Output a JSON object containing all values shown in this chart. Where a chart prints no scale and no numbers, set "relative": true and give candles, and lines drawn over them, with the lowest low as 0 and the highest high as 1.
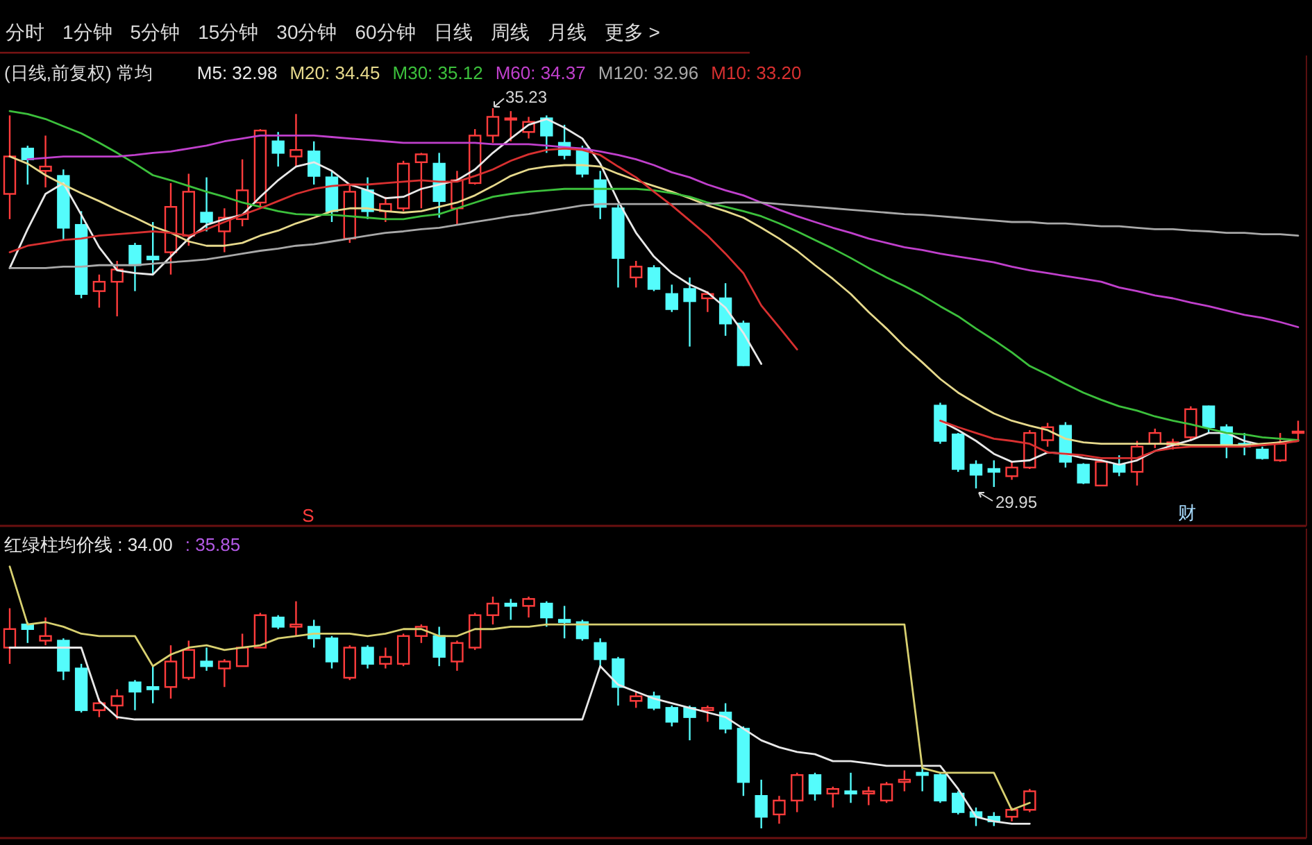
{
  "chart_data": [
    {
      "type": "other",
      "annotations": [
        "分时",
        "1分钟",
        "5分钟",
        "15分钟",
        "30分钟",
        "60分钟",
        "日线",
        "周线",
        "月线",
        "更多 >"
      ]
    },
    {
      "type": "candlestick",
      "title": "(日线,前复权) 常均",
      "categories": [
        null,
        null,
        null,
        null,
        null,
        null,
        null,
        null,
        null,
        null,
        null,
        null,
        null,
        null,
        null,
        null,
        null,
        null,
        null,
        null,
        null,
        null,
        null,
        null,
        null,
        null,
        null,
        null,
        null,
        null,
        null,
        null,
        null,
        null,
        null,
        null,
        null,
        null,
        null,
        null,
        null,
        null,
        null,
        null,
        null,
        null,
        null,
        null,
        null,
        null,
        null,
        null,
        null,
        null,
        null,
        null,
        null,
        null,
        null,
        null,
        null,
        null,
        null,
        null,
        null,
        null,
        null,
        null,
        null,
        null,
        null,
        null,
        null
      ],
      "ohlc": [
        [
          34.04,
          35.13,
          33.69,
          34.56
        ],
        [
          34.67,
          34.71,
          34.17,
          34.52
        ],
        [
          34.36,
          34.85,
          34.13,
          34.42
        ],
        [
          34.29,
          34.38,
          33.4,
          33.57
        ],
        [
          33.61,
          33.8,
          32.59,
          32.65
        ],
        [
          32.69,
          32.92,
          32.46,
          32.82
        ],
        [
          32.82,
          33.11,
          32.34,
          32.99
        ],
        [
          33.32,
          33.36,
          32.69,
          33.05
        ],
        [
          33.17,
          33.65,
          32.92,
          33.13
        ],
        [
          33.23,
          34.19,
          32.92,
          33.86
        ],
        [
          33.46,
          34.32,
          33.32,
          34.07
        ],
        [
          33.78,
          34.27,
          33.52,
          33.65
        ],
        [
          33.52,
          33.84,
          33.23,
          33.71
        ],
        [
          33.69,
          34.52,
          33.59,
          34.09
        ],
        [
          33.92,
          34.94,
          33.84,
          34.92
        ],
        [
          34.77,
          34.9,
          34.42,
          34.61
        ],
        [
          34.56,
          35.15,
          34.42,
          34.65
        ],
        [
          34.63,
          34.77,
          34.17,
          34.29
        ],
        [
          34.27,
          34.36,
          33.65,
          33.8
        ],
        [
          33.42,
          34.17,
          33.36,
          34.07
        ],
        [
          34.09,
          34.27,
          33.69,
          33.8
        ],
        [
          33.8,
          34.0,
          33.65,
          33.9
        ],
        [
          33.84,
          34.5,
          33.8,
          34.46
        ],
        [
          34.48,
          34.61,
          33.84,
          34.59
        ],
        [
          34.46,
          34.61,
          33.71,
          33.94
        ],
        [
          33.84,
          34.36,
          33.61,
          34.23
        ],
        [
          34.19,
          34.94,
          34.17,
          34.85
        ],
        [
          34.85,
          35.23,
          34.75,
          35.11
        ],
        [
          35.08,
          35.19,
          34.77,
          35.09
        ],
        [
          34.9,
          35.11,
          34.81,
          35.04
        ],
        [
          35.09,
          35.13,
          34.61,
          34.85
        ],
        [
          34.75,
          35.0,
          34.52,
          34.58
        ],
        [
          34.67,
          34.71,
          34.27,
          34.32
        ],
        [
          34.23,
          34.36,
          33.69,
          33.86
        ],
        [
          33.84,
          33.9,
          32.74,
          33.15
        ],
        [
          32.88,
          33.11,
          32.74,
          33.03
        ],
        [
          33.01,
          33.05,
          32.69,
          32.72
        ],
        [
          32.65,
          32.78,
          32.4,
          32.44
        ],
        [
          32.72,
          32.88,
          31.92,
          32.55
        ],
        [
          32.59,
          32.69,
          32.4,
          32.65
        ],
        [
          32.59,
          32.8,
          32.07,
          32.24
        ],
        [
          32.24,
          32.28,
          31.65,
          31.66
        ],
        null,
        null,
        null,
        null,
        null,
        null,
        null,
        null,
        null,
        null,
        [
          31.1,
          31.14,
          30.57,
          30.61
        ],
        [
          30.7,
          30.72,
          30.18,
          30.22
        ],
        [
          30.28,
          30.34,
          29.95,
          30.14
        ],
        [
          30.22,
          30.34,
          29.97,
          30.18
        ],
        [
          30.12,
          30.32,
          30.07,
          30.24
        ],
        [
          30.24,
          30.76,
          30.22,
          30.72
        ],
        [
          30.62,
          30.86,
          30.53,
          30.8
        ],
        [
          30.82,
          30.87,
          30.24,
          30.32
        ],
        [
          30.28,
          30.3,
          30.01,
          30.03
        ],
        [
          29.99,
          30.35,
          29.99,
          30.32
        ],
        [
          30.28,
          30.41,
          30.12,
          30.18
        ],
        [
          30.18,
          30.61,
          29.99,
          30.53
        ],
        [
          30.57,
          30.78,
          30.51,
          30.72
        ],
        [
          30.55,
          30.64,
          30.49,
          30.59
        ],
        [
          30.66,
          31.09,
          30.61,
          31.05
        ],
        [
          31.09,
          31.1,
          30.72,
          30.8
        ],
        [
          30.8,
          30.84,
          30.37,
          30.53
        ],
        [
          30.57,
          30.72,
          30.41,
          30.53
        ],
        [
          30.49,
          30.53,
          30.35,
          30.37
        ],
        [
          30.34,
          30.72,
          30.32,
          30.57
        ],
        [
          30.72,
          30.89,
          30.62,
          30.74
        ]
      ],
      "series": [
        {
          "name": "M5: 32.98",
          "type": "line",
          "color": "#e8e8e8",
          "values": [
            33.01,
            33.55,
            34.04,
            34.19,
            33.75,
            33.3,
            32.98,
            32.94,
            32.92,
            33.17,
            33.42,
            33.61,
            33.69,
            33.75,
            34.0,
            34.23,
            34.42,
            34.48,
            34.36,
            34.17,
            34.09,
            33.98,
            34.0,
            34.11,
            34.17,
            34.23,
            34.38,
            34.61,
            34.81,
            35.0,
            35.08,
            34.96,
            34.81,
            34.46,
            33.94,
            33.5,
            33.17,
            32.94,
            32.78,
            32.67,
            32.46,
            32.11,
            31.68,
            null,
            null,
            null,
            null,
            null,
            null,
            null,
            null,
            null,
            30.89,
            30.76,
            30.61,
            30.43,
            30.32,
            30.34,
            30.45,
            30.43,
            30.37,
            30.34,
            30.28,
            30.34,
            30.47,
            30.55,
            30.62,
            30.72,
            30.72,
            30.61,
            30.55,
            30.59,
            30.62
          ]
        },
        {
          "name": "M20: 34.45",
          "type": "line",
          "color": "#e6d98c",
          "values": [
            34.56,
            34.46,
            34.3,
            34.17,
            34.05,
            33.94,
            33.82,
            33.71,
            33.59,
            33.5,
            33.38,
            33.32,
            33.32,
            33.36,
            33.46,
            33.53,
            33.63,
            33.71,
            33.8,
            33.84,
            33.84,
            33.8,
            33.78,
            33.8,
            33.86,
            33.92,
            34.02,
            34.15,
            34.29,
            34.38,
            34.42,
            34.44,
            34.44,
            34.42,
            34.32,
            34.23,
            34.15,
            34.07,
            33.98,
            33.88,
            33.8,
            33.71,
            33.57,
            33.42,
            33.25,
            33.05,
            32.86,
            32.65,
            32.4,
            32.17,
            31.92,
            31.7,
            31.47,
            31.28,
            31.13,
            30.99,
            30.89,
            30.82,
            30.76,
            30.64,
            30.59,
            30.57,
            30.57,
            30.57,
            30.57,
            30.57,
            30.55,
            30.55,
            30.55,
            30.55,
            30.57,
            30.59,
            30.61
          ]
        },
        {
          "name": "M30: 35.12",
          "type": "line",
          "color": "#3cc03c",
          "values": [
            35.19,
            35.15,
            35.08,
            34.98,
            34.88,
            34.75,
            34.61,
            34.46,
            34.3,
            34.23,
            34.15,
            34.07,
            34.0,
            33.92,
            33.86,
            33.8,
            33.76,
            33.75,
            33.75,
            33.73,
            33.71,
            33.69,
            33.69,
            33.73,
            33.76,
            33.84,
            33.92,
            34.0,
            34.04,
            34.07,
            34.09,
            34.11,
            34.11,
            34.11,
            34.11,
            34.11,
            34.09,
            34.05,
            34.0,
            33.92,
            33.86,
            33.8,
            33.73,
            33.63,
            33.52,
            33.4,
            33.28,
            33.15,
            33.01,
            32.88,
            32.76,
            32.63,
            32.48,
            32.34,
            32.17,
            32.01,
            31.84,
            31.65,
            31.53,
            31.4,
            31.28,
            31.18,
            31.09,
            31.03,
            30.95,
            30.89,
            30.84,
            30.78,
            30.72,
            30.7,
            30.66,
            30.64,
            30.62
          ]
        },
        {
          "name": "M60: 34.37",
          "type": "line",
          "color": "#c040cc",
          "values": [
            null,
            34.52,
            34.54,
            34.56,
            34.56,
            34.56,
            34.56,
            34.58,
            34.61,
            34.63,
            34.67,
            34.71,
            34.77,
            34.81,
            34.85,
            34.85,
            34.85,
            34.85,
            34.83,
            34.81,
            34.79,
            34.77,
            34.75,
            34.75,
            34.75,
            34.75,
            34.75,
            34.73,
            34.73,
            34.73,
            34.71,
            34.69,
            34.67,
            34.63,
            34.58,
            34.52,
            34.44,
            34.34,
            34.27,
            34.17,
            34.09,
            34.02,
            33.92,
            33.82,
            33.73,
            33.65,
            33.57,
            33.5,
            33.42,
            33.36,
            33.3,
            33.26,
            33.21,
            33.17,
            33.13,
            33.09,
            33.03,
            32.98,
            32.94,
            32.9,
            32.86,
            32.82,
            32.74,
            32.69,
            32.63,
            32.59,
            32.53,
            32.48,
            32.42,
            32.36,
            32.32,
            32.26,
            32.19
          ]
        },
        {
          "name": "M120: 32.96",
          "type": "line",
          "color": "#a8a8a8",
          "values": [
            33.01,
            33.01,
            33.01,
            33.03,
            33.03,
            33.05,
            33.05,
            33.05,
            33.07,
            33.09,
            33.11,
            33.13,
            33.17,
            33.21,
            33.25,
            33.28,
            33.32,
            33.34,
            33.38,
            33.42,
            33.46,
            33.5,
            33.52,
            33.55,
            33.57,
            33.61,
            33.65,
            33.69,
            33.73,
            33.76,
            33.8,
            33.84,
            33.88,
            33.9,
            33.9,
            33.9,
            33.9,
            33.9,
            33.9,
            33.9,
            33.92,
            33.92,
            33.92,
            33.9,
            33.88,
            33.86,
            33.84,
            33.82,
            33.8,
            33.78,
            33.76,
            33.75,
            33.73,
            33.71,
            33.69,
            33.67,
            33.65,
            33.65,
            33.63,
            33.63,
            33.61,
            33.59,
            33.59,
            33.57,
            33.55,
            33.55,
            33.53,
            33.52,
            33.5,
            33.5,
            33.48,
            33.48,
            33.46
          ]
        },
        {
          "name": "M10: 33.20",
          "type": "line",
          "color": "#d83030",
          "values": [
            33.23,
            33.32,
            33.36,
            33.4,
            33.42,
            33.46,
            33.48,
            33.5,
            33.52,
            33.5,
            33.46,
            33.55,
            33.65,
            33.75,
            33.84,
            33.94,
            34.04,
            34.11,
            34.15,
            34.17,
            34.17,
            34.19,
            34.21,
            34.23,
            34.21,
            34.21,
            34.29,
            34.38,
            34.5,
            34.59,
            34.65,
            34.67,
            34.65,
            34.58,
            34.42,
            34.27,
            34.07,
            33.88,
            33.67,
            33.46,
            33.21,
            32.94,
            32.49,
            32.19,
            31.88,
            null,
            null,
            null,
            null,
            null,
            null,
            null,
            30.89,
            30.8,
            30.72,
            30.64,
            30.61,
            30.57,
            30.45,
            30.43,
            30.41,
            30.37,
            30.37,
            30.37,
            30.47,
            30.51,
            30.53,
            30.53,
            30.53,
            30.53,
            30.55,
            30.57,
            30.61
          ]
        }
      ],
      "annotations": [
        "35.23",
        "29.95",
        "S",
        "财"
      ]
    },
    {
      "type": "candlestick",
      "relative": true,
      "categories": [
        null,
        null,
        null,
        null,
        null,
        null,
        null,
        null,
        null,
        null,
        null,
        null,
        null,
        null,
        null,
        null,
        null,
        null,
        null,
        null,
        null,
        null,
        null,
        null,
        null,
        null,
        null,
        null,
        null,
        null,
        null,
        null,
        null,
        null,
        null,
        null,
        null,
        null,
        null,
        null,
        null,
        null,
        null,
        null,
        null,
        null,
        null,
        null,
        null,
        null,
        null,
        null,
        null,
        null,
        null,
        null,
        null,
        null,
        null,
        null,
        null,
        null,
        null,
        null,
        null,
        null,
        null,
        null,
        null,
        null,
        null,
        null,
        null
      ],
      "ohlc": [
        [
          0.78,
          0.95,
          0.71,
          0.86
        ],
        [
          0.88,
          0.89,
          0.8,
          0.86
        ],
        [
          0.81,
          0.91,
          0.79,
          0.83
        ],
        [
          0.81,
          0.82,
          0.64,
          0.68
        ],
        [
          0.69,
          0.71,
          0.5,
          0.51
        ],
        [
          0.51,
          0.56,
          0.48,
          0.54
        ],
        [
          0.53,
          0.6,
          0.47,
          0.57
        ],
        [
          0.63,
          0.64,
          0.51,
          0.59
        ],
        [
          0.61,
          0.7,
          0.54,
          0.6
        ],
        [
          0.61,
          0.79,
          0.56,
          0.72
        ],
        [
          0.65,
          0.81,
          0.64,
          0.77
        ],
        [
          0.72,
          0.78,
          0.68,
          0.7
        ],
        [
          0.69,
          0.73,
          0.61,
          0.72
        ],
        [
          0.7,
          0.84,
          0.7,
          0.78
        ],
        [
          0.78,
          0.93,
          0.78,
          0.92
        ],
        [
          0.91,
          0.92,
          0.86,
          0.87
        ],
        [
          0.87,
          0.98,
          0.83,
          0.88
        ],
        [
          0.87,
          0.9,
          0.78,
          0.82
        ],
        [
          0.82,
          0.83,
          0.69,
          0.72
        ],
        [
          0.65,
          0.79,
          0.64,
          0.78
        ],
        [
          0.78,
          0.79,
          0.69,
          0.71
        ],
        [
          0.71,
          0.78,
          0.69,
          0.74
        ],
        [
          0.71,
          0.84,
          0.7,
          0.83
        ],
        [
          0.83,
          0.88,
          0.8,
          0.87
        ],
        [
          0.83,
          0.87,
          0.7,
          0.74
        ],
        [
          0.72,
          0.81,
          0.68,
          0.8
        ],
        [
          0.78,
          0.93,
          0.77,
          0.92
        ],
        [
          0.92,
          1.0,
          0.88,
          0.97
        ],
        [
          0.97,
          0.99,
          0.9,
          0.96
        ],
        [
          0.96,
          1.0,
          0.91,
          0.99
        ],
        [
          0.97,
          0.98,
          0.87,
          0.91
        ],
        [
          0.9,
          0.96,
          0.82,
          0.89
        ],
        [
          0.89,
          0.9,
          0.81,
          0.82
        ],
        [
          0.8,
          0.82,
          0.7,
          0.73
        ],
        [
          0.73,
          0.74,
          0.53,
          0.61
        ],
        [
          0.55,
          0.59,
          0.52,
          0.57
        ],
        [
          0.57,
          0.59,
          0.51,
          0.52
        ],
        [
          0.52,
          0.53,
          0.44,
          0.46
        ],
        [
          0.52,
          0.53,
          0.38,
          0.48
        ],
        [
          0.51,
          0.53,
          0.46,
          0.52
        ],
        [
          0.5,
          0.54,
          0.41,
          0.43
        ],
        [
          0.43,
          0.44,
          0.14,
          0.2
        ],
        [
          0.14,
          0.21,
          0,
          0.05
        ],
        [
          0.06,
          0.14,
          0.02,
          0.12
        ],
        [
          0.12,
          0.24,
          0.07,
          0.23
        ],
        [
          0.23,
          0.24,
          0.12,
          0.15
        ],
        [
          0.15,
          0.18,
          0.09,
          0.17
        ],
        [
          0.16,
          0.24,
          0.11,
          0.15
        ],
        [
          0.15,
          0.18,
          0.1,
          0.16
        ],
        [
          0.12,
          0.2,
          0.11,
          0.19
        ],
        [
          0.2,
          0.25,
          0.16,
          0.21
        ],
        [
          0.24,
          0.27,
          0.16,
          0.23
        ],
        [
          0.23,
          0.24,
          0.11,
          0.12
        ],
        [
          0.15,
          0.16,
          0.06,
          0.07
        ],
        [
          0.07,
          0.09,
          0.01,
          0.05
        ],
        [
          0.05,
          0.07,
          0.01,
          0.03
        ],
        [
          0.05,
          0.09,
          0.03,
          0.08
        ],
        [
          0.08,
          0.17,
          0.07,
          0.16
        ],
        null,
        null,
        null,
        null,
        null,
        null,
        null,
        null,
        null,
        null,
        null,
        null,
        null,
        null,
        null
      ],
      "series": [
        {
          "name": "红绿柱均价线 : 34.00",
          "type": "line",
          "color": "#e8e8e8",
          "values": [
            0.78,
            0.78,
            0.78,
            0.78,
            0.78,
            0.55,
            0.48,
            0.47,
            0.47,
            0.47,
            0.47,
            0.47,
            0.47,
            0.47,
            0.47,
            0.47,
            0.47,
            0.47,
            0.47,
            0.47,
            0.47,
            0.47,
            0.47,
            0.47,
            0.47,
            0.47,
            0.47,
            0.47,
            0.47,
            0.47,
            0.47,
            0.47,
            0.47,
            0.7,
            0.62,
            0.59,
            0.56,
            0.54,
            0.52,
            0.5,
            0.48,
            0.43,
            0.38,
            0.35,
            0.33,
            0.32,
            0.29,
            0.29,
            0.28,
            0.27,
            0.27,
            0.27,
            0.27,
            0.17,
            0.05,
            0.03,
            0.02,
            0.02,
            null,
            null,
            null,
            null,
            null,
            null,
            null,
            null,
            null,
            null,
            null,
            null,
            null,
            null,
            null
          ]
        },
        {
          "type": "line",
          "color": "#d8d070",
          "values": [
            1.13,
            0.88,
            0.89,
            0.87,
            0.84,
            0.83,
            0.83,
            0.83,
            0.7,
            0.75,
            0.78,
            0.79,
            0.77,
            0.78,
            0.79,
            0.82,
            0.83,
            0.84,
            0.84,
            0.84,
            0.83,
            0.84,
            0.86,
            0.86,
            0.83,
            0.83,
            0.86,
            0.86,
            0.87,
            0.87,
            0.88,
            0.88,
            0.88,
            0.88,
            0.88,
            0.88,
            0.88,
            0.88,
            0.88,
            0.88,
            0.88,
            0.88,
            0.88,
            0.88,
            0.88,
            0.88,
            0.88,
            0.88,
            0.88,
            0.88,
            0.88,
            0.26,
            0.24,
            0.24,
            0.24,
            0.24,
            0.08,
            0.11,
            null,
            null,
            null,
            null,
            null,
            null,
            null,
            null,
            null,
            null,
            null,
            null,
            null,
            null,
            null
          ]
        }
      ],
      "annotations": [
        ": 35.85"
      ]
    }
  ]
}
